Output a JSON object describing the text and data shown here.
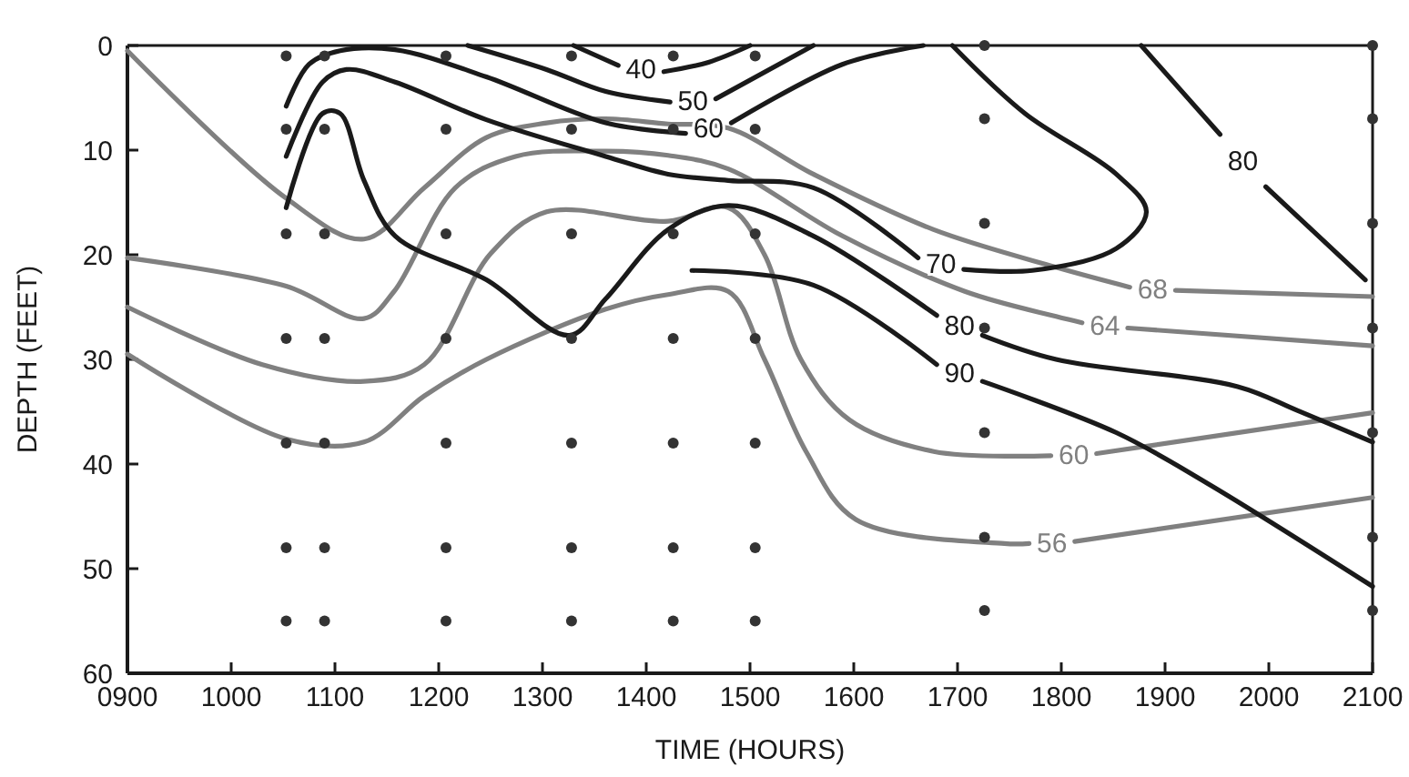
{
  "chart_data": {
    "type": "line",
    "xlabel": "TIME (HOURS)",
    "ylabel": "DEPTH (FEET)",
    "xlim": [
      900,
      2100
    ],
    "ylim": [
      60,
      0
    ],
    "xticks": [
      {
        "value": 900,
        "label": "0900"
      },
      1000,
      1100,
      1200,
      1300,
      1400,
      1500,
      1600,
      1700,
      1800,
      1900,
      2000,
      2100
    ],
    "yticks": [
      0,
      10,
      20,
      30,
      40,
      50,
      60
    ],
    "series": [
      {
        "name": "68",
        "color": "#808080",
        "x": [
          900,
          1053,
          1128,
          1186,
          1246,
          1304,
          1361,
          1421,
          1479,
          1561,
          1677,
          1795,
          1866,
          1888,
          1910,
          2100
        ],
        "values": [
          0.5,
          14.6,
          18.5,
          13.6,
          8.8,
          7.4,
          7,
          7.5,
          7.9,
          12.3,
          17.6,
          21.2,
          23.1,
          null,
          23.4,
          24
        ]
      },
      {
        "name": "64",
        "color": "#808080",
        "x": [
          900,
          1053,
          1128,
          1157,
          1216,
          1274,
          1361,
          1421,
          1479,
          1589,
          1707,
          1795,
          1820,
          1842,
          1864,
          2100
        ],
        "values": [
          20.3,
          23,
          26.1,
          23.5,
          13.6,
          10.6,
          10.1,
          10.5,
          11.8,
          18.2,
          23.5,
          25.9,
          26.5,
          null,
          27,
          28.7
        ]
      },
      {
        "name": "60",
        "color": "#808080",
        "x": [
          900,
          1030,
          1128,
          1186,
          1250,
          1304,
          1421,
          1479,
          1514,
          1549,
          1596,
          1677,
          1790,
          1812,
          1834,
          2100
        ],
        "values": [
          25,
          30.5,
          32.1,
          30.5,
          19.9,
          15.9,
          16.8,
          15.5,
          20,
          30,
          35.8,
          38.8,
          39.2,
          null,
          39,
          35.1
        ]
      },
      {
        "name": "56",
        "color": "#808080",
        "x": [
          900,
          1053,
          1128,
          1186,
          1246,
          1361,
          1421,
          1479,
          1514,
          1554,
          1602,
          1745,
          1769,
          1791,
          1813,
          2100
        ],
        "values": [
          29.5,
          37.6,
          37.9,
          33.5,
          30,
          25.2,
          23.8,
          23.5,
          30,
          38.8,
          45.3,
          47.6,
          47.6,
          null,
          47.4,
          43.2
        ]
      },
      {
        "name": "40",
        "color": "#1a1a1a",
        "x": [
          1330,
          1373,
          1395,
          1417,
          1460,
          1500
        ],
        "values": [
          0,
          1.9,
          null,
          2.5,
          1.6,
          0
        ]
      },
      {
        "name": "50",
        "color": "#1a1a1a",
        "x": [
          1228,
          1304,
          1361,
          1423,
          1445,
          1467,
          1561
        ],
        "values": [
          0,
          2.3,
          4.4,
          5.4,
          null,
          5.1,
          0
        ]
      },
      {
        "name": "60",
        "color": "#1a1a1a",
        "x": [
          1053,
          1075,
          1105,
          1158,
          1246,
          1361,
          1438,
          1460,
          1482,
          1589,
          1667
        ],
        "values": [
          5.8,
          1.8,
          0.5,
          0.4,
          3,
          7.4,
          8.4,
          null,
          7.4,
          1.8,
          0
        ]
      },
      {
        "name": "70",
        "color": "#1a1a1a",
        "x": [
          1053,
          1088,
          1111,
          1158,
          1246,
          1361,
          1421,
          1479,
          1561,
          1662,
          1684,
          1706,
          1772,
          1853,
          1882,
          1853,
          1765,
          1695
        ],
        "values": [
          10.6,
          3.5,
          2.3,
          3.5,
          7.1,
          10.6,
          12.3,
          12.9,
          13.6,
          20.3,
          null,
          21.4,
          21.5,
          19.4,
          15.9,
          12.3,
          6.5,
          0
        ]
      },
      {
        "name": "80",
        "color": "#1a1a1a",
        "x": [
          1053,
          1088,
          1105,
          1128,
          1158,
          1246,
          1326,
          1361,
          1421,
          1479,
          1561,
          1680,
          1702,
          1724,
          1795,
          1970,
          2028,
          2100
        ],
        "values": [
          15.5,
          6.5,
          6.5,
          12.9,
          18.2,
          22.4,
          27.7,
          24.2,
          17.6,
          15.3,
          18.2,
          25.8,
          null,
          27.7,
          30,
          32.6,
          34.9,
          37.9
        ]
      },
      {
        "name": "90",
        "color": "#1a1a1a",
        "x": [
          1444,
          1561,
          1680,
          1702,
          1724,
          1853,
          1940,
          2100
        ],
        "values": [
          21.5,
          22.9,
          30.5,
          null,
          32.1,
          37,
          41.8,
          51.7
        ]
      },
      {
        "name": "80",
        "color": "#1a1a1a",
        "x": [
          1877,
          1953,
          1975,
          1997,
          2093
        ],
        "values": [
          0,
          8.5,
          null,
          13.5,
          22.4
        ]
      },
      {
        "type": "scatter",
        "marker": "circle",
        "color": "#333333",
        "x": [
          1053,
          1053,
          1053,
          1053,
          1053,
          1053,
          1053,
          1090,
          1090,
          1090,
          1090,
          1090,
          1090,
          1090,
          1207,
          1207,
          1207,
          1207,
          1207,
          1207,
          1207,
          1328,
          1328,
          1328,
          1328,
          1328,
          1328,
          1328,
          1426,
          1426,
          1426,
          1426,
          1426,
          1426,
          1426,
          1505,
          1505,
          1505,
          1505,
          1505,
          1505,
          1505,
          1726,
          1726,
          1726,
          1726,
          1726,
          1726,
          1726,
          2100,
          2100,
          2100,
          2100,
          2100,
          2100,
          2100
        ],
        "values": [
          1,
          8,
          18,
          28,
          38,
          48,
          55,
          1,
          8,
          18,
          28,
          38,
          48,
          55,
          1,
          8,
          18,
          28,
          38,
          48,
          55,
          1,
          8,
          18,
          28,
          38,
          48,
          55,
          1,
          8,
          18,
          28,
          38,
          48,
          55,
          1,
          8,
          18,
          28,
          38,
          48,
          55,
          0,
          7,
          17,
          27,
          37,
          47,
          54,
          0,
          7,
          17,
          27,
          37,
          47,
          54
        ]
      }
    ]
  }
}
